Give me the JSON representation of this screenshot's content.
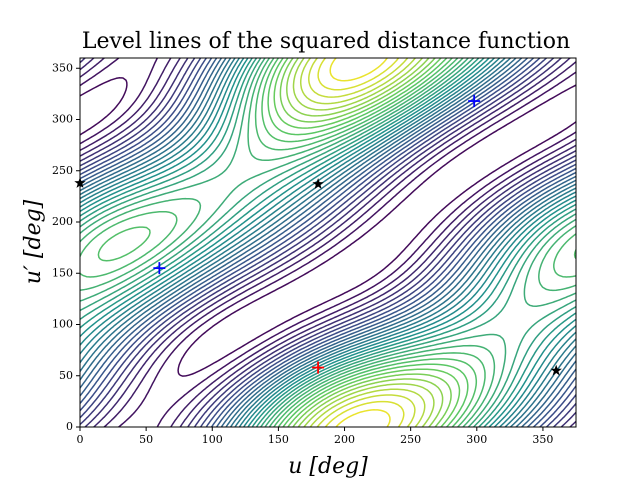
{
  "chart_data": {
    "type": "contour",
    "title": "Level lines of the squared distance function",
    "xlabel": "u [deg]",
    "ylabel": "u′ [deg]",
    "xlim": [
      0,
      375
    ],
    "ylim": [
      0,
      360
    ],
    "xticks": [
      0,
      50,
      100,
      150,
      200,
      250,
      300,
      350
    ],
    "yticks": [
      0,
      50,
      100,
      150,
      200,
      250,
      300,
      350
    ],
    "colormap": "viridis",
    "markers": [
      {
        "marker": "plus",
        "color": "#0000ff",
        "x": [
          60,
          298
        ],
        "y": [
          155,
          318
        ]
      },
      {
        "marker": "plus",
        "color": "#ff0000",
        "x": [
          180
        ],
        "y": [
          58
        ]
      },
      {
        "marker": "star",
        "color": "#000000",
        "x": [
          0,
          180,
          360
        ],
        "y": [
          238,
          237,
          55
        ]
      }
    ]
  }
}
